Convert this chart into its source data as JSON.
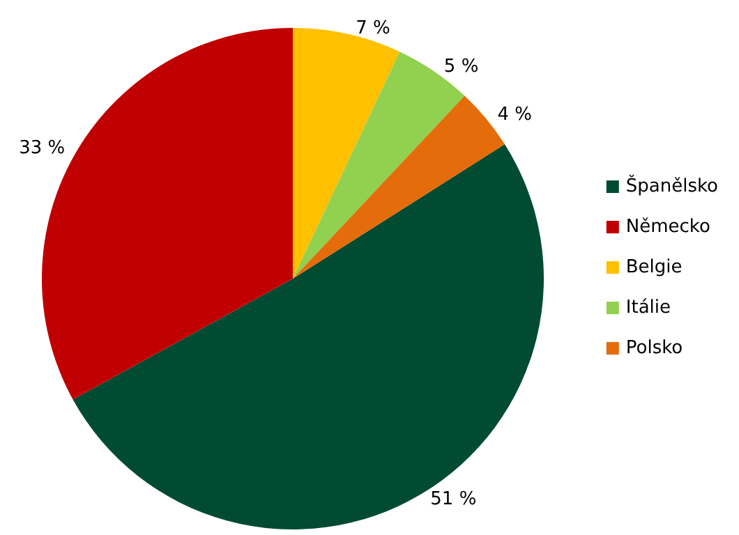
{
  "chart_data": {
    "type": "pie",
    "categories": [
      "Španělsko",
      "Německo",
      "Belgie",
      "Itálie",
      "Polsko"
    ],
    "values": [
      51,
      33,
      7,
      5,
      4
    ],
    "value_labels": [
      "51 %",
      "33 %",
      "7 %",
      "5 %",
      "4 %"
    ],
    "colors": [
      "#004b32",
      "#c00000",
      "#ffc000",
      "#92d050",
      "#e46c0a"
    ],
    "legend": "right"
  }
}
